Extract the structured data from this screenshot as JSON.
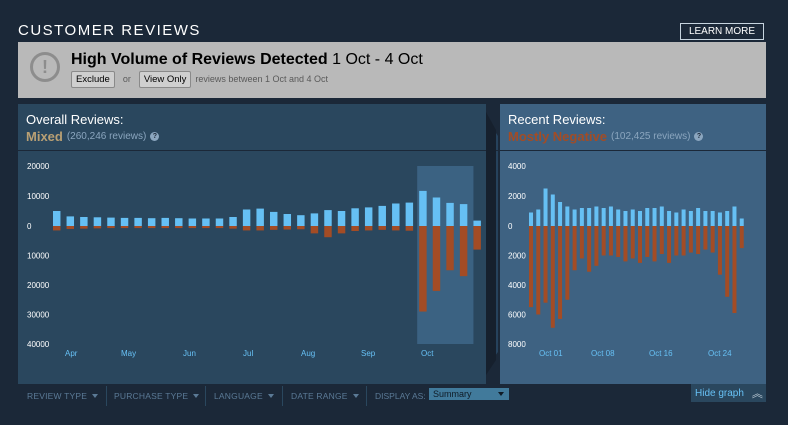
{
  "header": {
    "title": "CUSTOMER REVIEWS",
    "learn_more": "LEARN MORE"
  },
  "banner": {
    "icon": "alert-icon",
    "icon_glyph": "!",
    "title_bold": "High Volume of Reviews Detected",
    "title_range": "1 Oct - 4 Oct",
    "exclude_label": "Exclude",
    "or_text": "or",
    "view_only_label": "View Only",
    "rest_text": "reviews between 1 Oct and 4 Oct"
  },
  "overall": {
    "heading": "Overall Reviews:",
    "summary": "Mixed",
    "count": "(260,246 reviews)",
    "help": "?"
  },
  "recent": {
    "heading": "Recent Reviews:",
    "summary": "Mostly Negative",
    "count": "(102,425 reviews)",
    "help": "?"
  },
  "colors": {
    "positive": "#66c0f4",
    "negative": "#a34c25",
    "highlight": "#3b6282",
    "mixed": "#b9a074"
  },
  "chart_data": [
    {
      "type": "bar",
      "title": "Overall Reviews",
      "y_ticks_positive": [
        "20000",
        "10000",
        "0"
      ],
      "y_ticks_negative": [
        "10000",
        "20000",
        "30000",
        "40000"
      ],
      "ylim_positive": [
        0,
        20000
      ],
      "ylim_negative": [
        0,
        40000
      ],
      "month_labels": [
        "Apr",
        "May",
        "Jun",
        "Jul",
        "Aug",
        "Sep",
        "Oct"
      ],
      "highlight_range_bars": [
        27,
        30
      ],
      "series": [
        {
          "values": [
            5000,
            3200,
            3000,
            2900,
            2800,
            2700,
            2700,
            2600,
            2700,
            2600,
            2500,
            2500,
            2500,
            3000,
            5500,
            5800,
            4700,
            4000,
            3600,
            4200,
            5300,
            5000,
            5900,
            6200,
            6700,
            7500,
            7800,
            11700,
            9500,
            7700,
            7300,
            1800
          ]
        },
        {
          "values": [
            1500,
            1000,
            900,
            800,
            700,
            700,
            700,
            700,
            700,
            700,
            700,
            700,
            700,
            900,
            1500,
            1500,
            1300,
            1200,
            1100,
            2500,
            3800,
            2500,
            1700,
            1500,
            1300,
            1500,
            1600,
            29000,
            22000,
            15000,
            17000,
            8000
          ]
        }
      ]
    },
    {
      "type": "bar",
      "title": "Recent Reviews",
      "y_ticks_positive": [
        "4000",
        "2000",
        "0"
      ],
      "y_ticks_negative": [
        "2000",
        "4000",
        "6000",
        "8000"
      ],
      "ylim_positive": [
        0,
        4000
      ],
      "ylim_negative": [
        0,
        8000
      ],
      "date_labels": [
        "Oct 01",
        "Oct 08",
        "Oct 16",
        "Oct 24"
      ],
      "series": [
        {
          "values": [
            900,
            1100,
            2500,
            2100,
            1600,
            1300,
            1100,
            1200,
            1200,
            1300,
            1200,
            1300,
            1100,
            1000,
            1100,
            1000,
            1200,
            1200,
            1300,
            1000,
            900,
            1100,
            1000,
            1200,
            1000,
            1000,
            900,
            1000,
            1300,
            500
          ]
        },
        {
          "values": [
            5500,
            6000,
            5200,
            6900,
            6300,
            5000,
            3000,
            2200,
            3100,
            2700,
            2000,
            2000,
            2100,
            2400,
            2200,
            2500,
            2100,
            2400,
            1900,
            2500,
            2000,
            2000,
            1800,
            1900,
            1600,
            1800,
            3300,
            4800,
            5900,
            1500
          ]
        }
      ]
    }
  ],
  "filters": {
    "review_type": "REVIEW TYPE",
    "purchase_type": "PURCHASE TYPE",
    "language": "LANGUAGE",
    "date_range": "DATE RANGE",
    "display_as_label": "DISPLAY AS:",
    "display_as_value": "Summary"
  },
  "hide_graph": {
    "label": "Hide graph",
    "icon": "chevron-double-up-icon",
    "glyph": "︽"
  }
}
